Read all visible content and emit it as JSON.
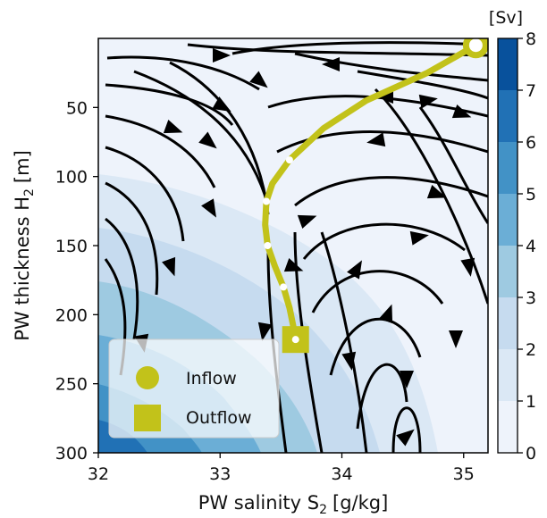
{
  "chart_data": {
    "type": "streamplot",
    "xlabel": "PW salinity S",
    "xlabel_sub": "2",
    "xlabel_unit": "[g/kg]",
    "ylabel": "PW thickness H",
    "ylabel_sub": "2",
    "ylabel_unit": "[m]",
    "xlim": [
      32,
      35.2
    ],
    "ylim": [
      300,
      0
    ],
    "xticks": [
      32,
      33,
      34,
      35
    ],
    "yticks": [
      50,
      100,
      150,
      200,
      250,
      300
    ],
    "colorbar": {
      "label": "[Sv]",
      "range": [
        0,
        8
      ],
      "ticks": [
        0,
        1,
        2,
        3,
        4,
        5,
        6,
        7,
        8
      ],
      "colors": [
        "#eef3fb",
        "#dbe8f5",
        "#c6dbef",
        "#9ecae1",
        "#6baed6",
        "#4292c6",
        "#2171b5",
        "#08519c"
      ]
    },
    "trajectory": {
      "color": "#bdbd1b",
      "points": [
        [
          35.1,
          5
        ],
        [
          34.7,
          25
        ],
        [
          34.2,
          45
        ],
        [
          33.85,
          65
        ],
        [
          33.57,
          88
        ],
        [
          33.43,
          105
        ],
        [
          33.38,
          118
        ],
        [
          33.37,
          135
        ],
        [
          33.39,
          150
        ],
        [
          33.45,
          165
        ],
        [
          33.52,
          180
        ],
        [
          33.57,
          195
        ],
        [
          33.6,
          208
        ],
        [
          33.62,
          218
        ]
      ],
      "markers": [
        [
          33.57,
          88
        ],
        [
          33.38,
          118
        ],
        [
          33.39,
          150
        ],
        [
          33.52,
          180
        ],
        [
          33.62,
          218
        ]
      ],
      "inflow": [
        35.1,
        5
      ],
      "outflow": [
        33.62,
        218
      ]
    },
    "legend": {
      "position": "lower-left",
      "entries": [
        {
          "label": "Inflow",
          "marker": "circle"
        },
        {
          "label": "Outflow",
          "marker": "square"
        }
      ]
    }
  }
}
